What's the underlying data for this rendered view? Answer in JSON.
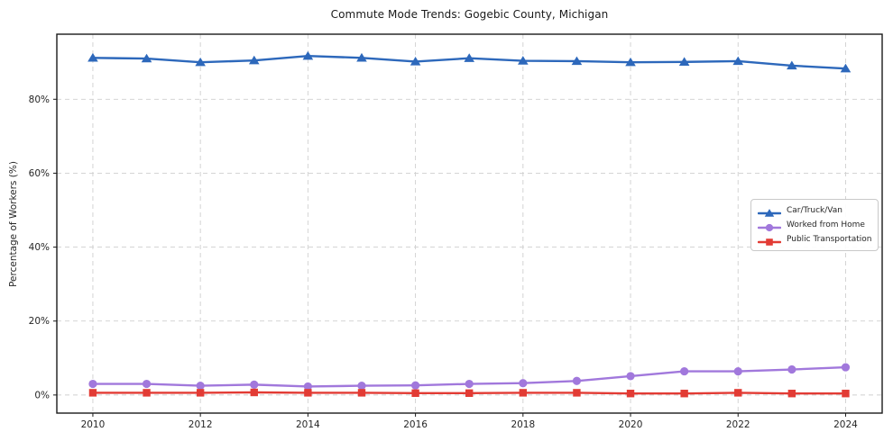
{
  "figure": {
    "title": "Commute Mode Trends: Gogebic County, Michigan",
    "ylabel": "Percentage of Workers (%)"
  },
  "chart_data": {
    "type": "line",
    "title": "Commute Mode Trends: Gogebic County, Michigan",
    "xlabel": "",
    "ylabel": "Percentage of Workers (%)",
    "x": [
      2010,
      2011,
      2012,
      2013,
      2014,
      2015,
      2016,
      2017,
      2018,
      2019,
      2020,
      2021,
      2022,
      2023,
      2024
    ],
    "series": [
      {
        "name": "Car/Truck/Van",
        "marker": "triangle",
        "color": "#2d68bb",
        "values": [
          91.2,
          91.0,
          90.0,
          90.5,
          91.7,
          91.2,
          90.2,
          91.1,
          90.4,
          90.3,
          90.0,
          90.1,
          90.3,
          89.1,
          88.3
        ]
      },
      {
        "name": "Worked from Home",
        "marker": "circle",
        "color": "#a178dc",
        "values": [
          3.0,
          3.0,
          2.5,
          2.8,
          2.3,
          2.5,
          2.6,
          3.0,
          3.2,
          3.8,
          5.1,
          6.4,
          6.4,
          6.9,
          7.5
        ]
      },
      {
        "name": "Public Transportation",
        "marker": "square",
        "color": "#e23b34",
        "values": [
          0.6,
          0.6,
          0.6,
          0.7,
          0.6,
          0.6,
          0.5,
          0.5,
          0.6,
          0.6,
          0.4,
          0.4,
          0.6,
          0.4,
          0.4
        ]
      }
    ],
    "xlim": [
      2009.33,
      2024.68
    ],
    "ylim": [
      -4.9,
      97.6
    ],
    "xticks": [
      2010,
      2012,
      2014,
      2016,
      2018,
      2020,
      2022,
      2024
    ],
    "yticks": [
      0,
      20,
      40,
      60,
      80
    ],
    "ytick_labels": [
      "0%",
      "20%",
      "40%",
      "60%",
      "80%"
    ],
    "grid": true,
    "grid_style": "dashed",
    "grid_color": "#cfcfcf",
    "frame_color": "#1a1a1a",
    "legend_position": "center-right"
  }
}
